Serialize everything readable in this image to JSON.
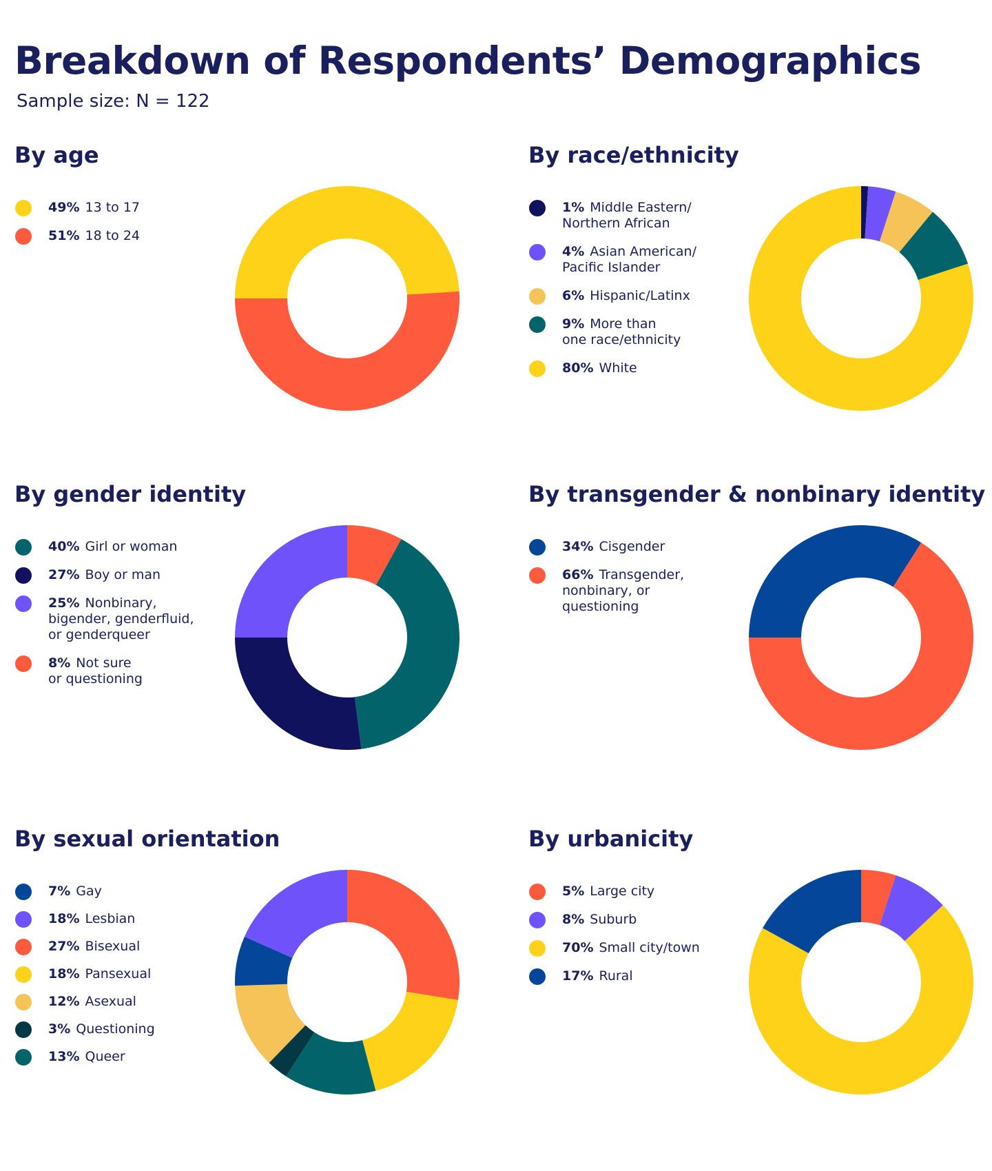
{
  "title": "Breakdown of Respondents’ Demographics",
  "subtitle": "Sample size: N = 122",
  "colors": {
    "navy": "#11125E",
    "purple": "#7052FB",
    "orange_light": "#F6C358",
    "teal": "#03636A",
    "yellow": "#FDD218",
    "red": "#FE5B3E",
    "blue": "#04469A",
    "dark_teal": "#043845"
  },
  "chart_data": [
    {
      "type": "donut",
      "title": "By age",
      "start_angle_deg": 180,
      "series": [
        {
          "pct_label": "49%",
          "label": "13 to 17",
          "value": 49,
          "color": "#FDD218"
        },
        {
          "pct_label": "51%",
          "label": "18 to 24",
          "value": 51,
          "color": "#FE5B3E"
        }
      ],
      "legend_order": [
        0,
        1
      ]
    },
    {
      "type": "donut",
      "title": "By race/ethnicity",
      "start_angle_deg": -90,
      "series": [
        {
          "pct_label": "1%",
          "label": "Middle Eastern/\nNorthern African",
          "value": 1,
          "color": "#11125E"
        },
        {
          "pct_label": "4%",
          "label": "Asian American/\nPacific Islander",
          "value": 4,
          "color": "#7052FB"
        },
        {
          "pct_label": "6%",
          "label": "Hispanic/Latinx",
          "value": 6,
          "color": "#F6C358"
        },
        {
          "pct_label": "9%",
          "label": "More than\none race/ethnicity",
          "value": 9,
          "color": "#03636A"
        },
        {
          "pct_label": "80%",
          "label": "White",
          "value": 80,
          "color": "#FDD218"
        }
      ],
      "legend_order": [
        0,
        1,
        2,
        3,
        4
      ]
    },
    {
      "type": "donut",
      "title": "By gender identity",
      "start_angle_deg": -90,
      "series": [
        {
          "pct_label": "8%",
          "label": "Not sure\nor questioning",
          "value": 8,
          "color": "#FE5B3E"
        },
        {
          "pct_label": "40%",
          "label": "Girl or woman",
          "value": 40,
          "color": "#03636A"
        },
        {
          "pct_label": "27%",
          "label": "Boy or man",
          "value": 27,
          "color": "#11125E"
        },
        {
          "pct_label": "25%",
          "label": "Nonbinary,\nbigender, genderfluid,\nor genderqueer",
          "value": 25,
          "color": "#7052FB"
        }
      ],
      "legend_order": [
        1,
        2,
        3,
        0
      ]
    },
    {
      "type": "donut",
      "title": "By transgender & nonbinary identity",
      "start_angle_deg": 180,
      "series": [
        {
          "pct_label": "34%",
          "label": "Cisgender",
          "value": 34,
          "color": "#04469A"
        },
        {
          "pct_label": "66%",
          "label": "Transgender,\nnonbinary, or\nquestioning",
          "value": 66,
          "color": "#FE5B3E"
        }
      ],
      "legend_order": [
        0,
        1
      ]
    },
    {
      "type": "donut",
      "title": "By sexual orientation",
      "start_angle_deg": -90,
      "series": [
        {
          "pct_label": "27%",
          "label": "Bisexual",
          "value": 27,
          "color": "#FE5B3E"
        },
        {
          "pct_label": "18%",
          "label": "Pansexual",
          "value": 18,
          "color": "#FDD218"
        },
        {
          "pct_label": "13%",
          "label": "Queer",
          "value": 13,
          "color": "#03636A"
        },
        {
          "pct_label": "3%",
          "label": "Questioning",
          "value": 3,
          "color": "#043845"
        },
        {
          "pct_label": "12%",
          "label": "Asexual",
          "value": 12,
          "color": "#F6C358"
        },
        {
          "pct_label": "7%",
          "label": "Gay",
          "value": 7,
          "color": "#04469A"
        },
        {
          "pct_label": "18%",
          "label": "Lesbian",
          "value": 18,
          "color": "#7052FB"
        }
      ],
      "legend_order": [
        5,
        6,
        0,
        1,
        4,
        3,
        2
      ]
    },
    {
      "type": "donut",
      "title": "By urbanicity",
      "start_angle_deg": -90,
      "series": [
        {
          "pct_label": "5%",
          "label": "Large city",
          "value": 5,
          "color": "#FE5B3E"
        },
        {
          "pct_label": "8%",
          "label": "Suburb",
          "value": 8,
          "color": "#7052FB"
        },
        {
          "pct_label": "70%",
          "label": "Small city/town",
          "value": 70,
          "color": "#FDD218"
        },
        {
          "pct_label": "17%",
          "label": "Rural",
          "value": 17,
          "color": "#04469A"
        }
      ],
      "legend_order": [
        0,
        1,
        2,
        3
      ]
    }
  ]
}
